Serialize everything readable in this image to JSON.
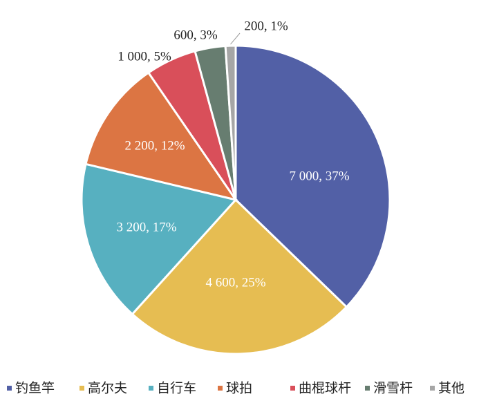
{
  "chart_data": {
    "type": "pie",
    "title": "",
    "categories": [
      "钓鱼竿",
      "高尔夫",
      "自行车",
      "球拍",
      "曲棍球杆",
      "滑雪杆",
      "其他"
    ],
    "values": [
      7000,
      4600,
      3200,
      2200,
      1000,
      600,
      200
    ],
    "data_labels": [
      "7 000, 37%",
      "4 600, 25%",
      "3 200, 17%",
      "2 200, 12%",
      "1 000, 5%",
      "600, 3%",
      "200, 1%"
    ],
    "colors": [
      "#5260A6",
      "#E6BD52",
      "#57B0C0",
      "#DC7543",
      "#D94F5A",
      "#677D70",
      "#A6A6A6"
    ],
    "label_colors": [
      "#ffffff",
      "#ffffff",
      "#ffffff",
      "#ffffff",
      "#222222",
      "#222222",
      "#222222"
    ],
    "legend": {
      "position": "bottom",
      "entries": [
        "钓鱼竿",
        "高尔夫",
        "自行车",
        "球拍",
        "曲棍球杆",
        "滑雪杆",
        "其他"
      ]
    },
    "start_angle": "12 o'clock",
    "direction": "clockwise"
  }
}
